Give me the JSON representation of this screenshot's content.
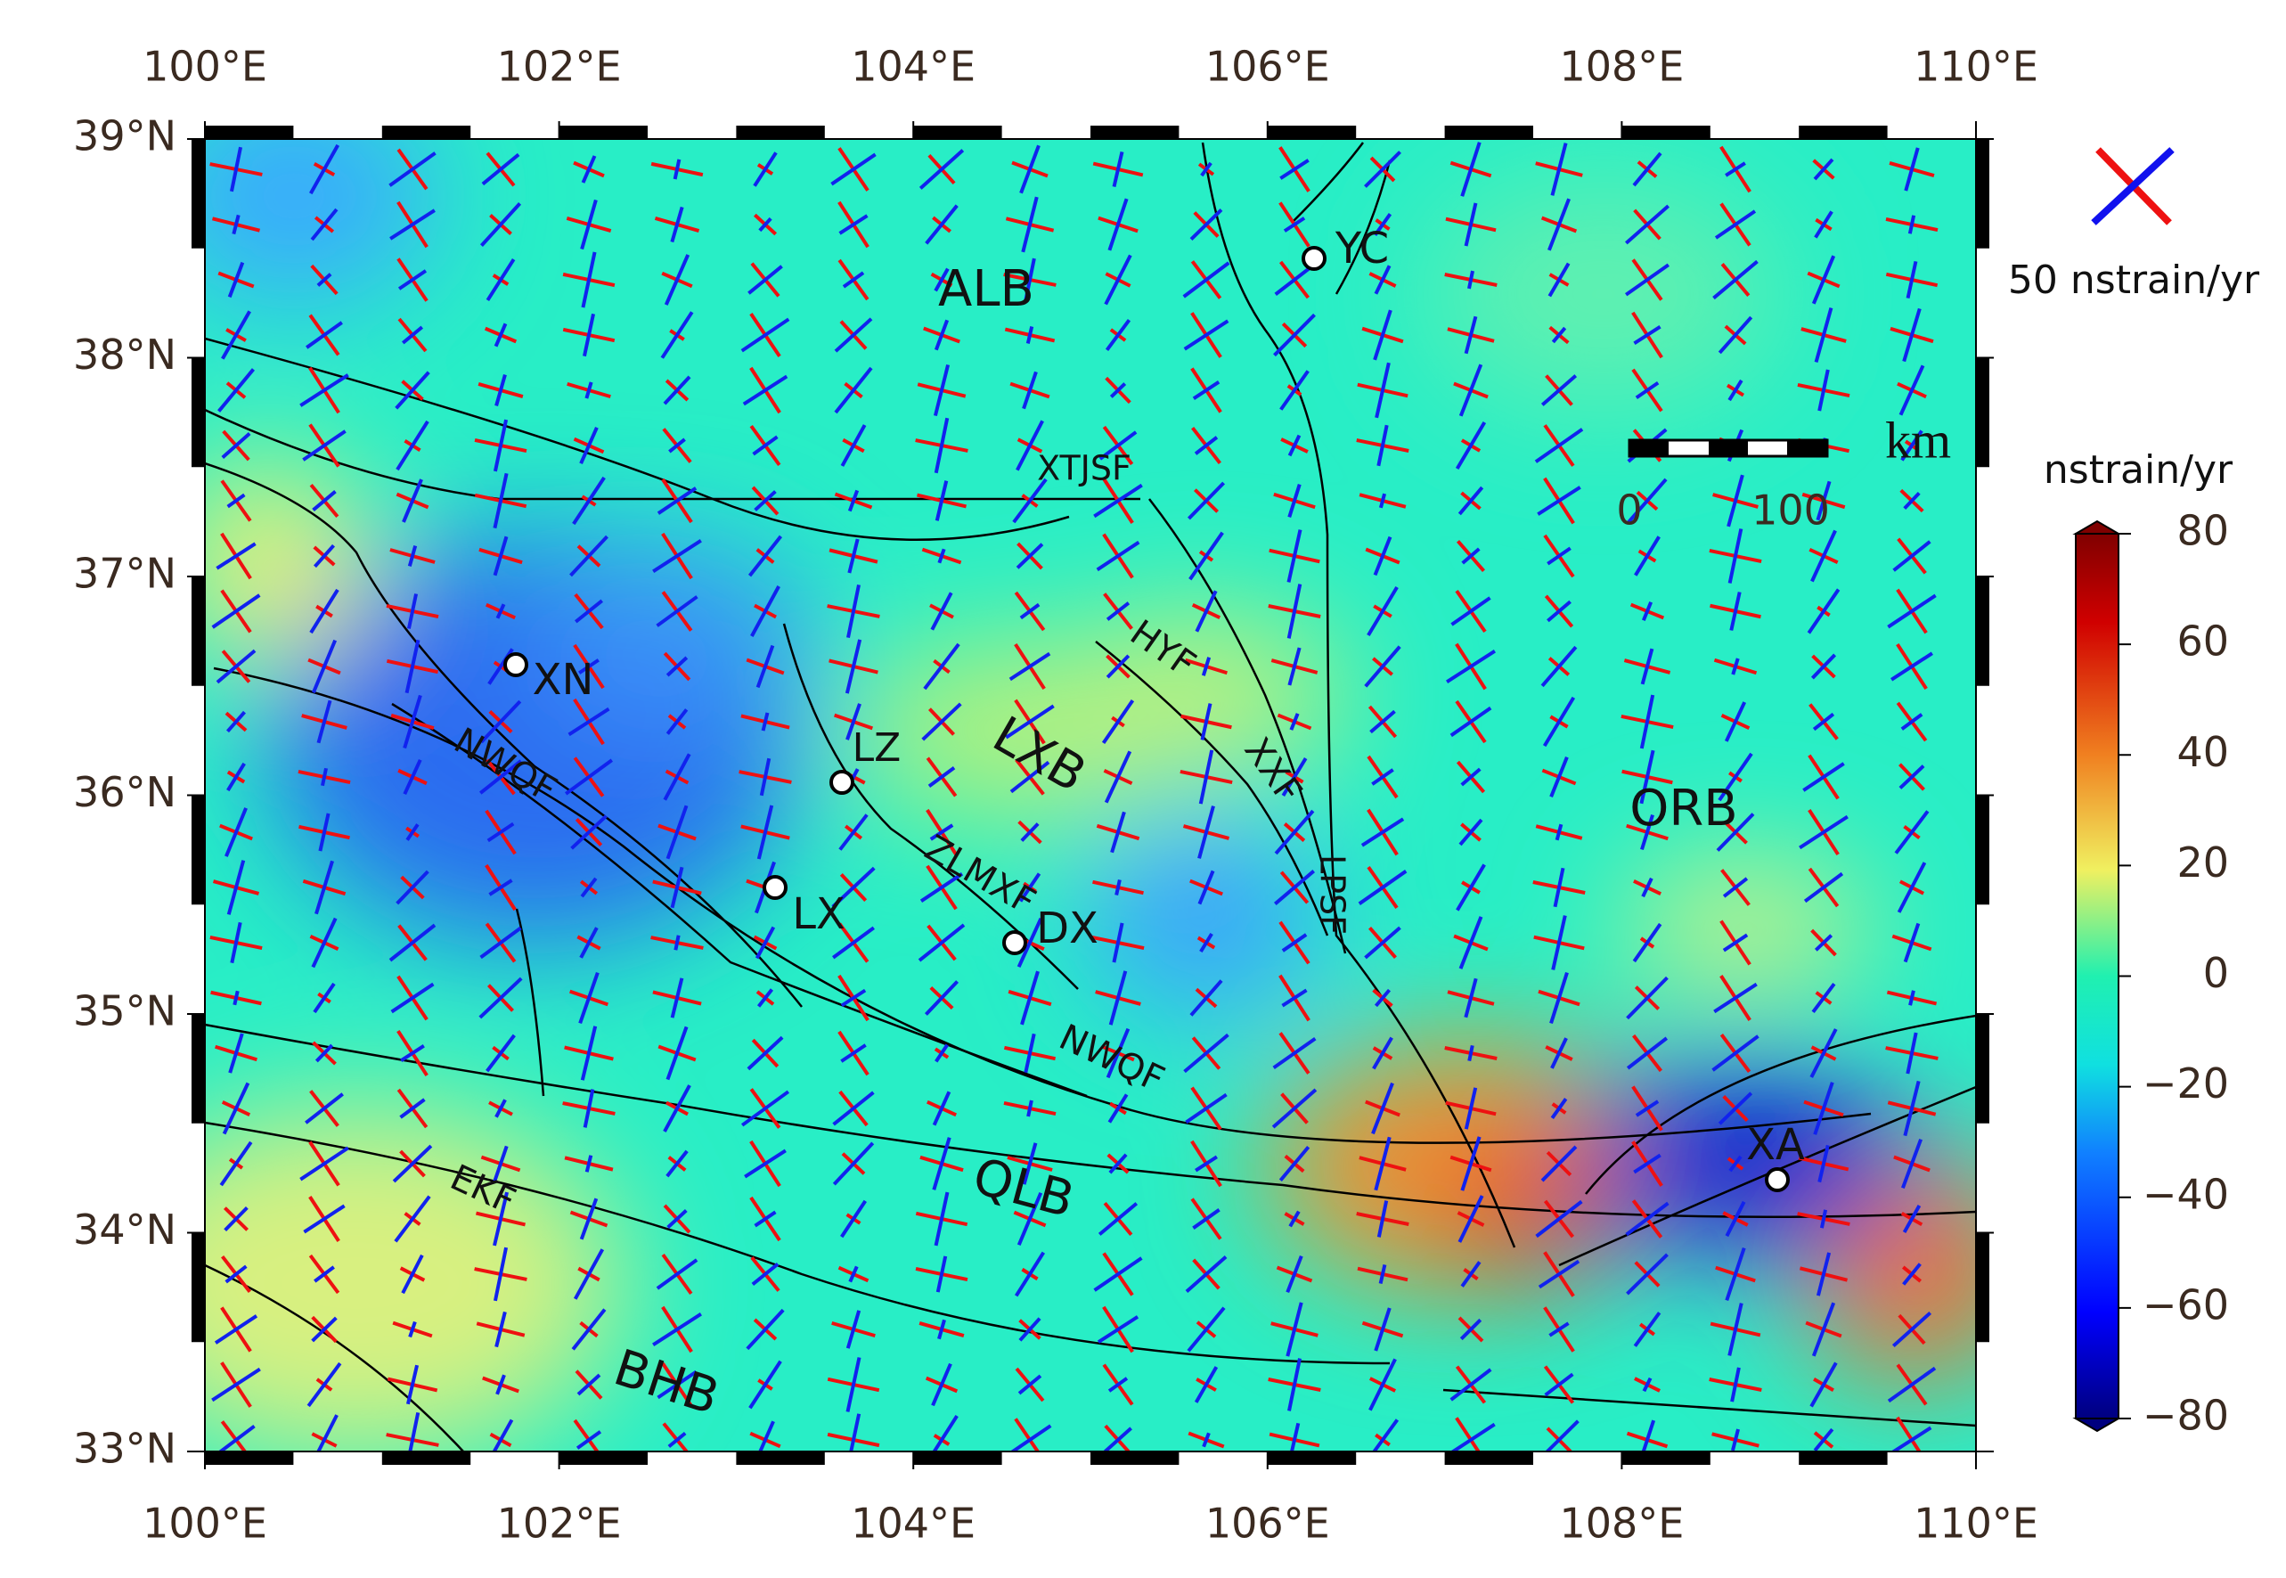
{
  "map_data": {
    "lon_range": [
      100,
      110
    ],
    "lat_range": [
      33,
      39
    ],
    "lon_ticks": [
      {
        "value": 100,
        "label": "100°E"
      },
      {
        "value": 102,
        "label": "102°E"
      },
      {
        "value": 104,
        "label": "104°E"
      },
      {
        "value": 106,
        "label": "106°E"
      },
      {
        "value": 108,
        "label": "108°E"
      },
      {
        "value": 110,
        "label": "110°E"
      }
    ],
    "lat_ticks": [
      {
        "value": 33,
        "label": "33°N"
      },
      {
        "value": 34,
        "label": "34°N"
      },
      {
        "value": 35,
        "label": "35°N"
      },
      {
        "value": 36,
        "label": "36°N"
      },
      {
        "value": 37,
        "label": "37°N"
      },
      {
        "value": 38,
        "label": "38°N"
      },
      {
        "value": 39,
        "label": "39°N"
      }
    ],
    "labels": [
      "ALB",
      "XTJSF",
      "HYF",
      "LXB",
      "XXF",
      "ORB",
      "XN",
      "NWQF",
      "LZ",
      "ZLMXF",
      "LX",
      "DX",
      "LPSF",
      "NWQF",
      "QLB",
      "EKF",
      "BHB",
      "YC",
      "XA"
    ],
    "legend": {
      "arrow_label": "50 nstrain/yr"
    },
    "scale_bar": {
      "unit": "km",
      "ticks": [
        0,
        100
      ]
    },
    "colorbar": {
      "title": "nstrain/yr",
      "range": [
        -80,
        80
      ],
      "ticks": [
        80,
        60,
        40,
        20,
        0,
        {
          "value": -20,
          "label": "−20"
        },
        {
          "value": -40,
          "label": "−40"
        },
        {
          "value": -60,
          "label": "−60"
        },
        {
          "value": -80,
          "label": "−80"
        }
      ]
    }
  }
}
